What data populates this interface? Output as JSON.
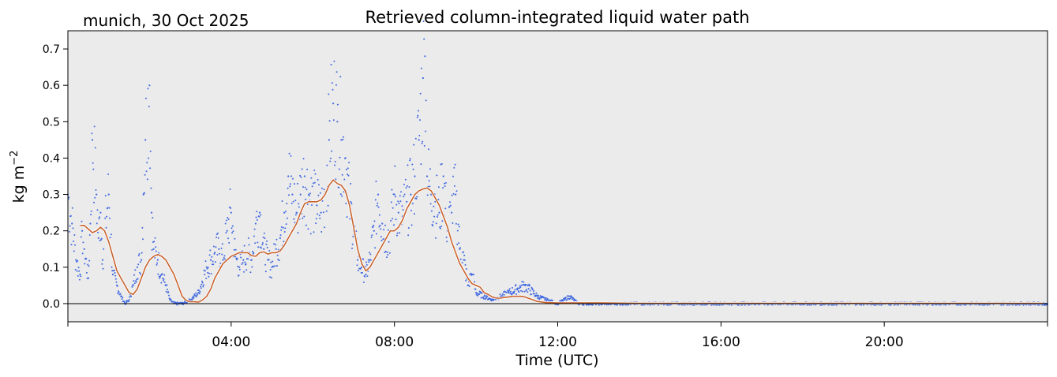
{
  "chart_data": {
    "type": "scatter",
    "title": "Retrieved column-integrated liquid water path",
    "location_date": "munich, 30 Oct 2025",
    "xlabel": "Time (UTC)",
    "ylabel_text": "kg m",
    "ylabel_exponent": "−2",
    "xlim": [
      0,
      24
    ],
    "ylim": [
      -0.05,
      0.75
    ],
    "x_unit": "hours UTC",
    "x_ticks": [
      {
        "value": 4,
        "label": "04:00"
      },
      {
        "value": 8,
        "label": "08:00"
      },
      {
        "value": 12,
        "label": "12:00"
      },
      {
        "value": 16,
        "label": "16:00"
      },
      {
        "value": 20,
        "label": "20:00"
      }
    ],
    "y_ticks": [
      {
        "value": -0.0,
        "label": "0.0"
      },
      {
        "value": 0.1,
        "label": "0.1"
      },
      {
        "value": 0.2,
        "label": "0.2"
      },
      {
        "value": 0.3,
        "label": "0.3"
      },
      {
        "value": 0.4,
        "label": "0.4"
      },
      {
        "value": 0.5,
        "label": "0.5"
      },
      {
        "value": 0.6,
        "label": "0.6"
      },
      {
        "value": 0.7,
        "label": "0.7"
      }
    ],
    "grid": false,
    "background_color": "#ebebeb",
    "reference_line": {
      "y": 0.0,
      "color": "#000000"
    },
    "series": [
      {
        "kind": "raw_scatter",
        "color": "#4169e1",
        "x": [
          0.0,
          0.1,
          0.2,
          0.3,
          0.35,
          0.4,
          0.5,
          0.55,
          0.6,
          0.7,
          0.75,
          0.8,
          0.85,
          0.9,
          1.0,
          1.1,
          1.2,
          1.3,
          1.4,
          1.5,
          1.6,
          1.7,
          1.8,
          1.85,
          1.9,
          2.0,
          2.05,
          2.1,
          2.2,
          2.3,
          2.4,
          2.5,
          2.6,
          2.8,
          3.0,
          3.2,
          3.4,
          3.5,
          3.6,
          3.7,
          3.8,
          3.9,
          4.0,
          4.1,
          4.2,
          4.3,
          4.4,
          4.5,
          4.6,
          4.7,
          4.8,
          4.9,
          5.0,
          5.1,
          5.2,
          5.3,
          5.4,
          5.5,
          5.6,
          5.7,
          5.8,
          5.9,
          6.0,
          6.1,
          6.2,
          6.3,
          6.4,
          6.5,
          6.6,
          6.7,
          6.8,
          6.9,
          7.0,
          7.1,
          7.2,
          7.3,
          7.4,
          7.5,
          7.6,
          7.7,
          7.8,
          7.9,
          8.0,
          8.1,
          8.2,
          8.3,
          8.4,
          8.5,
          8.6,
          8.7,
          8.75,
          8.8,
          8.9,
          9.0,
          9.1,
          9.2,
          9.3,
          9.4,
          9.5,
          9.6,
          9.7,
          9.8,
          9.9,
          10.0,
          10.2,
          10.4,
          10.6,
          10.8,
          11.0,
          11.2,
          11.5,
          12.0,
          12.3,
          12.5,
          13.0,
          14.0,
          15.0,
          16.0,
          17.0,
          18.0,
          19.0,
          20.0,
          21.0,
          22.0,
          23.0,
          23.5,
          23.8,
          24.0
        ],
        "y": [
          0.3,
          0.22,
          0.12,
          0.08,
          0.2,
          0.15,
          0.07,
          0.22,
          0.45,
          0.3,
          0.18,
          0.25,
          0.12,
          0.2,
          0.3,
          0.08,
          0.05,
          0.02,
          0.0,
          0.01,
          0.05,
          0.1,
          0.12,
          0.3,
          0.45,
          0.6,
          0.25,
          0.15,
          0.12,
          0.08,
          0.05,
          0.01,
          0.0,
          0.0,
          0.01,
          0.03,
          0.1,
          0.12,
          0.14,
          0.15,
          0.12,
          0.2,
          0.25,
          0.13,
          0.1,
          0.12,
          0.14,
          0.12,
          0.22,
          0.25,
          0.15,
          0.12,
          0.1,
          0.15,
          0.18,
          0.25,
          0.35,
          0.3,
          0.25,
          0.3,
          0.35,
          0.3,
          0.28,
          0.27,
          0.25,
          0.3,
          0.45,
          0.55,
          0.5,
          0.45,
          0.4,
          0.28,
          0.2,
          0.12,
          0.1,
          0.08,
          0.12,
          0.2,
          0.3,
          0.22,
          0.18,
          0.2,
          0.3,
          0.25,
          0.24,
          0.28,
          0.3,
          0.35,
          0.45,
          0.62,
          0.68,
          0.35,
          0.3,
          0.28,
          0.25,
          0.35,
          0.2,
          0.25,
          0.3,
          0.15,
          0.12,
          0.05,
          0.08,
          0.03,
          0.02,
          0.01,
          0.02,
          0.03,
          0.04,
          0.05,
          0.02,
          0.0,
          0.02,
          0.0,
          0.0,
          0.0,
          0.0,
          0.0,
          0.0,
          0.0,
          0.0,
          0.0,
          0.0,
          0.0,
          0.0,
          0.0,
          0.0,
          -0.001
        ]
      },
      {
        "kind": "smoothed_line",
        "color": "#c8632e",
        "x": [
          0.3,
          0.4,
          0.5,
          0.6,
          0.7,
          0.8,
          0.9,
          1.0,
          1.1,
          1.2,
          1.3,
          1.4,
          1.5,
          1.6,
          1.7,
          1.8,
          1.9,
          2.0,
          2.1,
          2.2,
          2.3,
          2.4,
          2.5,
          2.6,
          2.7,
          2.8,
          2.9,
          3.0,
          3.1,
          3.2,
          3.3,
          3.4,
          3.5,
          3.6,
          3.7,
          3.8,
          3.9,
          4.0,
          4.1,
          4.2,
          4.3,
          4.4,
          4.5,
          4.6,
          4.7,
          4.8,
          4.9,
          5.0,
          5.1,
          5.2,
          5.3,
          5.4,
          5.5,
          5.6,
          5.7,
          5.8,
          5.9,
          6.0,
          6.1,
          6.2,
          6.3,
          6.4,
          6.5,
          6.6,
          6.7,
          6.8,
          6.9,
          7.0,
          7.1,
          7.2,
          7.3,
          7.4,
          7.5,
          7.6,
          7.7,
          7.8,
          7.9,
          8.0,
          8.1,
          8.2,
          8.3,
          8.4,
          8.5,
          8.6,
          8.7,
          8.8,
          8.9,
          9.0,
          9.1,
          9.2,
          9.3,
          9.4,
          9.5,
          9.6,
          9.7,
          9.8,
          9.9,
          10.0,
          10.1,
          10.2,
          10.3,
          10.4,
          10.5,
          10.6,
          10.7,
          10.8,
          10.9,
          11.0,
          11.1,
          11.2,
          11.3,
          11.4,
          11.5,
          11.7,
          12.0,
          12.5,
          13.0,
          14.0,
          15.0,
          16.0,
          17.0,
          18.0,
          19.0,
          20.0,
          21.0,
          22.0,
          23.0,
          23.5,
          23.9
        ],
        "y": [
          0.215,
          0.215,
          0.205,
          0.195,
          0.2,
          0.21,
          0.2,
          0.17,
          0.13,
          0.09,
          0.07,
          0.05,
          0.03,
          0.025,
          0.04,
          0.07,
          0.1,
          0.12,
          0.13,
          0.135,
          0.13,
          0.12,
          0.1,
          0.08,
          0.05,
          0.02,
          0.008,
          0.005,
          0.005,
          0.004,
          0.01,
          0.02,
          0.04,
          0.07,
          0.09,
          0.11,
          0.12,
          0.13,
          0.135,
          0.14,
          0.14,
          0.14,
          0.132,
          0.13,
          0.14,
          0.142,
          0.136,
          0.14,
          0.14,
          0.145,
          0.16,
          0.18,
          0.2,
          0.22,
          0.25,
          0.275,
          0.28,
          0.28,
          0.28,
          0.285,
          0.3,
          0.325,
          0.34,
          0.33,
          0.325,
          0.31,
          0.27,
          0.21,
          0.15,
          0.11,
          0.09,
          0.1,
          0.12,
          0.14,
          0.16,
          0.18,
          0.2,
          0.2,
          0.21,
          0.23,
          0.26,
          0.28,
          0.3,
          0.31,
          0.315,
          0.318,
          0.31,
          0.29,
          0.27,
          0.24,
          0.21,
          0.17,
          0.14,
          0.11,
          0.09,
          0.07,
          0.055,
          0.05,
          0.045,
          0.03,
          0.025,
          0.018,
          0.015,
          0.015,
          0.017,
          0.018,
          0.02,
          0.02,
          0.02,
          0.018,
          0.014,
          0.01,
          0.006,
          0.003,
          0.002,
          0.002,
          0.002,
          0.001,
          0.001,
          0.001,
          0.001,
          0.001,
          0.001,
          0.001,
          0.001,
          0.001,
          0.001,
          0.001,
          0.001
        ]
      }
    ]
  }
}
